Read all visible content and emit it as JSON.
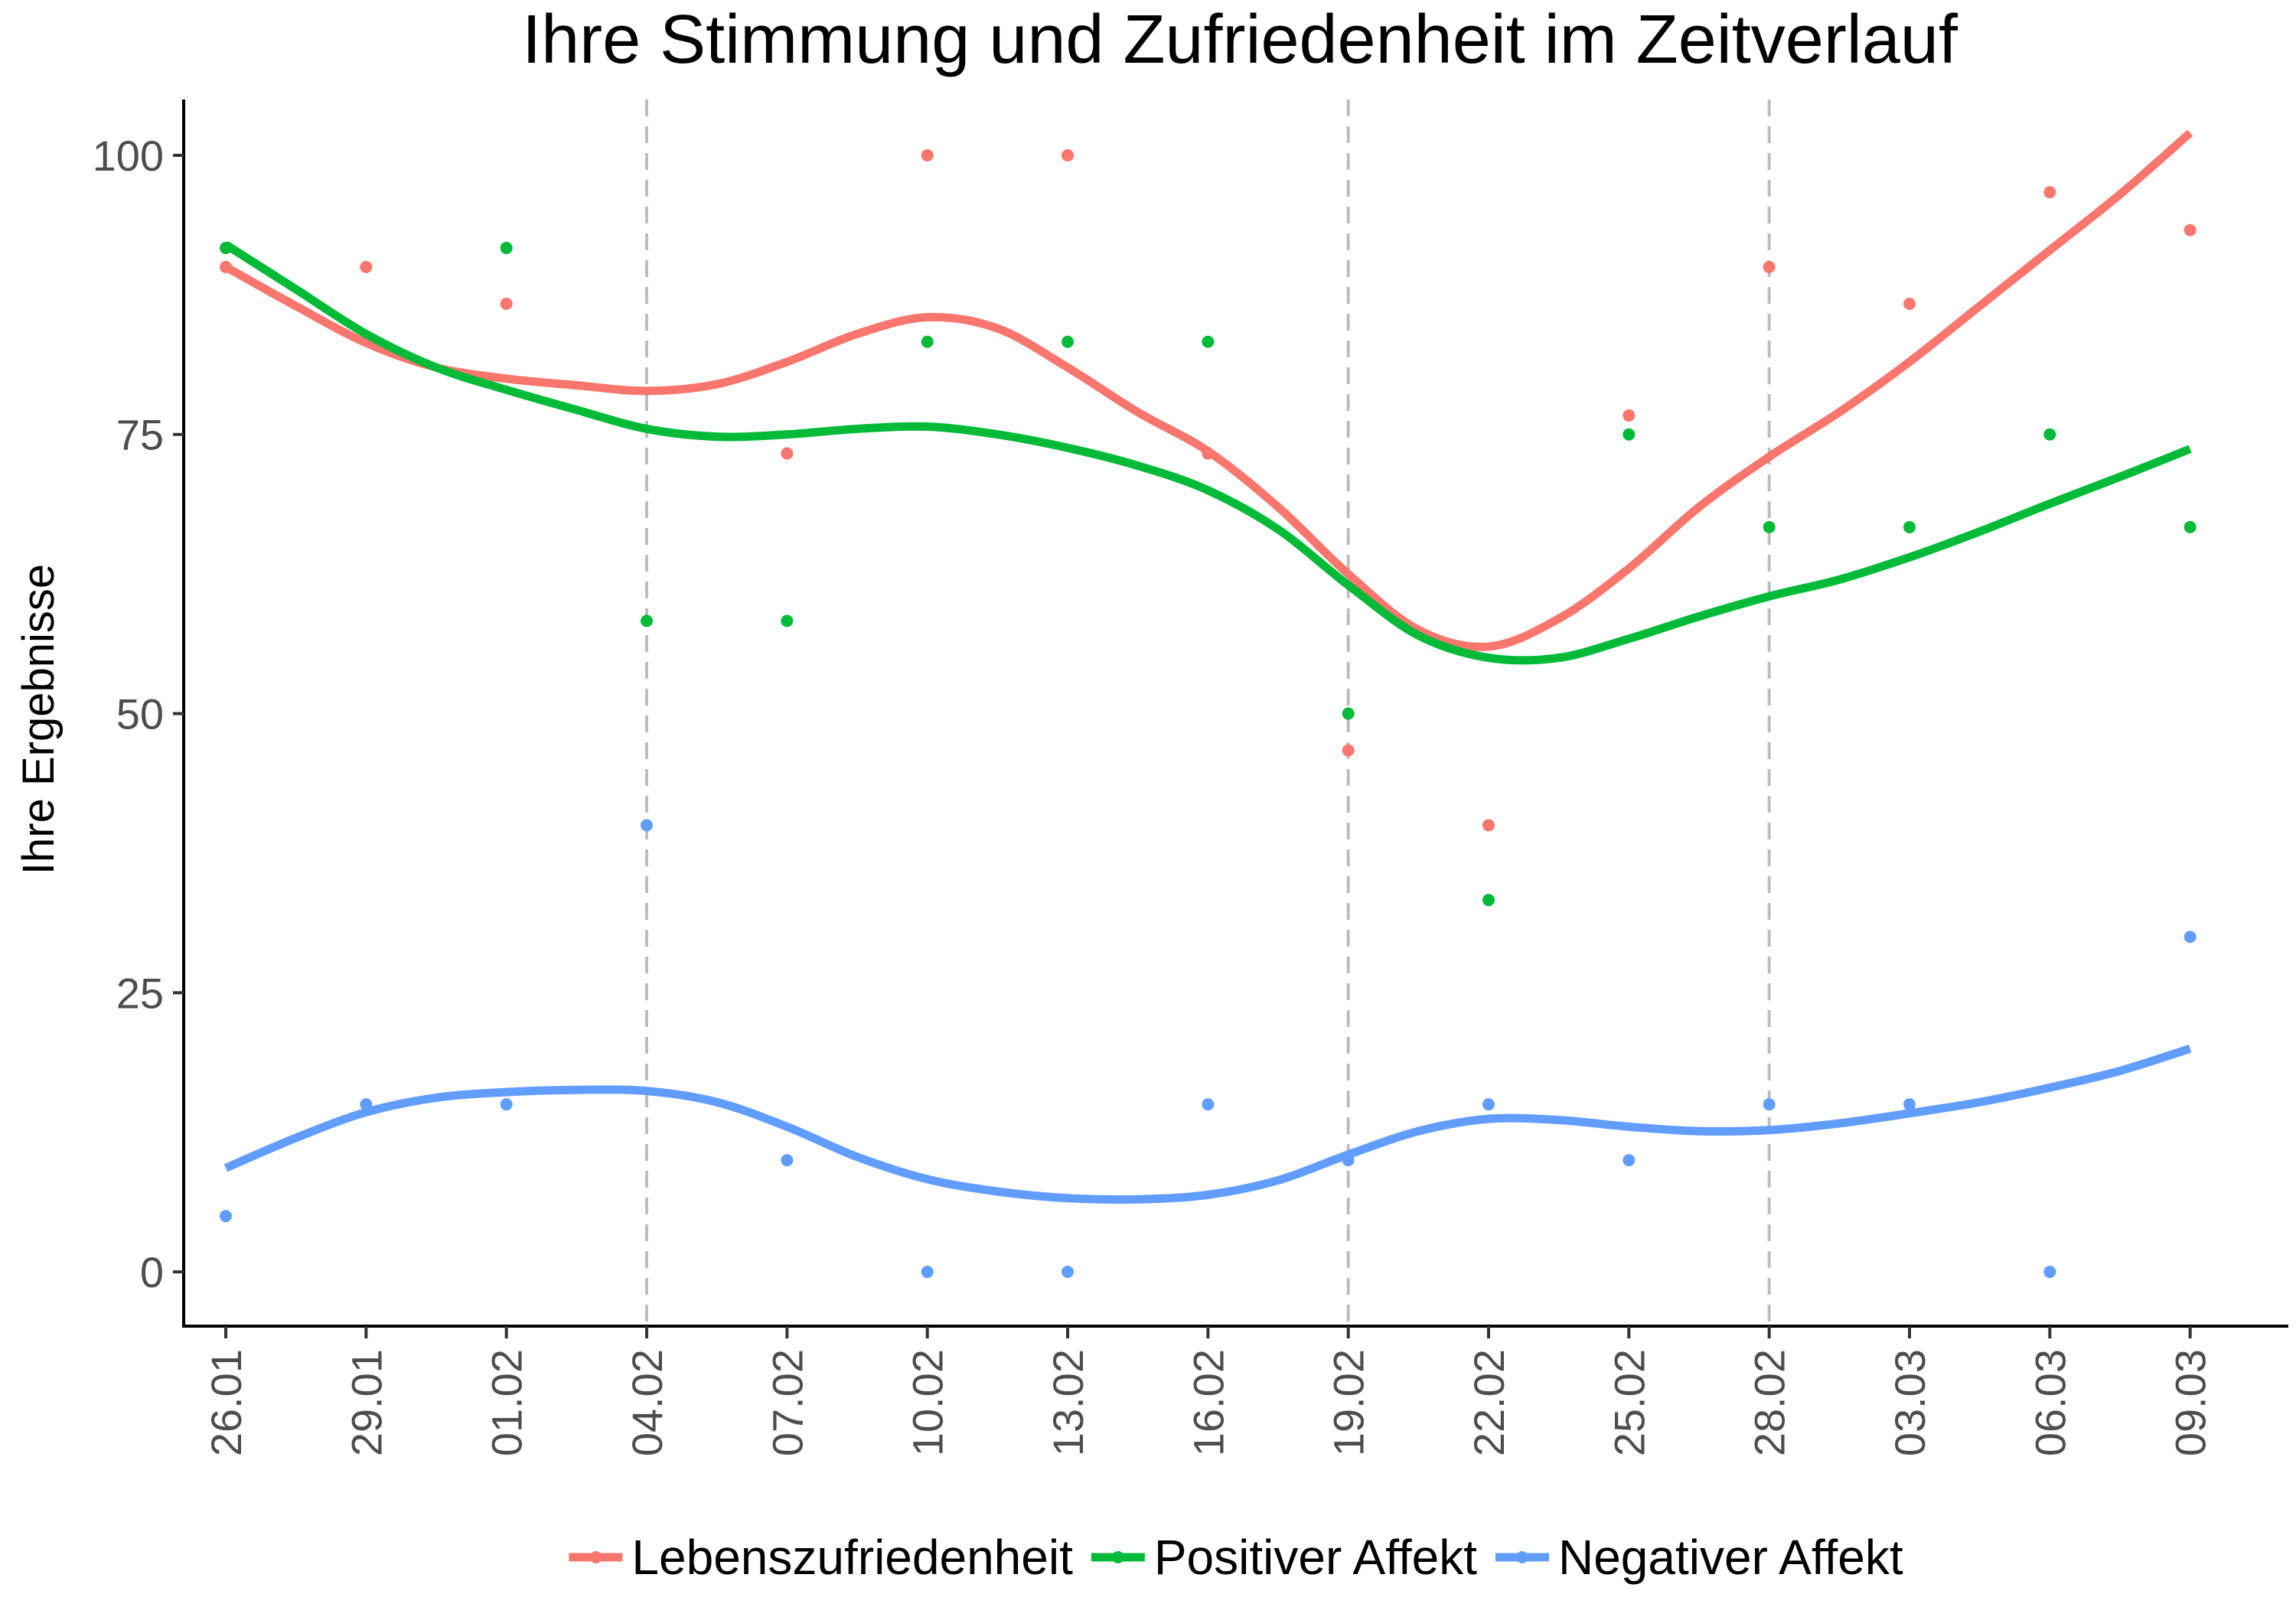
{
  "chart_data": {
    "type": "line",
    "title": "Ihre Stimmung und Zufriedenheit im Zeitverlauf",
    "xlabel": "",
    "ylabel": "Ihre Ergebnisse",
    "ylim": [
      -5,
      105
    ],
    "y_ticks": [
      0,
      25,
      50,
      75,
      100
    ],
    "x_ticks": [
      "26.01",
      "29.01",
      "01.02",
      "04.02",
      "07.02",
      "10.02",
      "13.02",
      "16.02",
      "19.02",
      "22.02",
      "25.02",
      "28.02",
      "03.03",
      "06.03",
      "09.03"
    ],
    "x_range_ticks": [
      -0.3,
      14.7
    ],
    "vlines": [
      3,
      8,
      11
    ],
    "grid": false,
    "legend_position": "bottom",
    "series": [
      {
        "name": "Lebenszufriedenheit",
        "color": "#F8766D",
        "points": [
          [
            0,
            90
          ],
          [
            1,
            90
          ],
          [
            2,
            86.7
          ],
          [
            4,
            73.3
          ],
          [
            5,
            100
          ],
          [
            6,
            100
          ],
          [
            7,
            73.3
          ],
          [
            8,
            46.7
          ],
          [
            9,
            40
          ],
          [
            10,
            76.7
          ],
          [
            11,
            90
          ],
          [
            12,
            86.7
          ],
          [
            13,
            96.7
          ],
          [
            14,
            93.3
          ]
        ],
        "smooth": [
          [
            0,
            90
          ],
          [
            0.5,
            86.5
          ],
          [
            1,
            83.2
          ],
          [
            1.5,
            81
          ],
          [
            2,
            80
          ],
          [
            2.5,
            79.4
          ],
          [
            3,
            78.9
          ],
          [
            3.5,
            79.5
          ],
          [
            4,
            81.5
          ],
          [
            4.5,
            84
          ],
          [
            5,
            85.5
          ],
          [
            5.5,
            84.5
          ],
          [
            6,
            81
          ],
          [
            6.5,
            77
          ],
          [
            7,
            73.5
          ],
          [
            7.5,
            68.5
          ],
          [
            8,
            62.5
          ],
          [
            8.5,
            57.5
          ],
          [
            9,
            56
          ],
          [
            9.5,
            58.5
          ],
          [
            10,
            63
          ],
          [
            10.5,
            68.5
          ],
          [
            11,
            73
          ],
          [
            11.5,
            77
          ],
          [
            12,
            81.5
          ],
          [
            12.5,
            86.5
          ],
          [
            13,
            91.5
          ],
          [
            13.5,
            96.5
          ],
          [
            14,
            102
          ]
        ]
      },
      {
        "name": "Positiver Affekt",
        "color": "#00BA38",
        "points": [
          [
            0,
            91.7
          ],
          [
            2,
            91.7
          ],
          [
            3,
            58.3
          ],
          [
            4,
            58.3
          ],
          [
            5,
            83.3
          ],
          [
            6,
            83.3
          ],
          [
            7,
            83.3
          ],
          [
            8,
            50
          ],
          [
            9,
            33.3
          ],
          [
            10,
            75
          ],
          [
            11,
            66.7
          ],
          [
            12,
            66.7
          ],
          [
            13,
            75
          ],
          [
            14,
            66.7
          ]
        ],
        "smooth": [
          [
            0,
            92
          ],
          [
            0.5,
            88
          ],
          [
            1,
            84
          ],
          [
            1.5,
            81
          ],
          [
            2,
            79
          ],
          [
            2.5,
            77.2
          ],
          [
            3,
            75.5
          ],
          [
            3.5,
            74.8
          ],
          [
            4,
            75
          ],
          [
            4.5,
            75.5
          ],
          [
            5,
            75.7
          ],
          [
            5.5,
            75
          ],
          [
            6,
            73.8
          ],
          [
            6.5,
            72.2
          ],
          [
            7,
            70
          ],
          [
            7.5,
            66.5
          ],
          [
            8,
            61.5
          ],
          [
            8.5,
            57
          ],
          [
            9,
            55
          ],
          [
            9.5,
            55
          ],
          [
            10,
            56.7
          ],
          [
            10.5,
            58.7
          ],
          [
            11,
            60.5
          ],
          [
            11.5,
            62
          ],
          [
            12,
            64
          ],
          [
            12.5,
            66.3
          ],
          [
            13,
            68.8
          ],
          [
            13.5,
            71.2
          ],
          [
            14,
            73.7
          ]
        ]
      },
      {
        "name": "Negativer Affekt",
        "color": "#619CFF",
        "points": [
          [
            0,
            5
          ],
          [
            1,
            15
          ],
          [
            2,
            15
          ],
          [
            3,
            40
          ],
          [
            4,
            10
          ],
          [
            5,
            0
          ],
          [
            6,
            0
          ],
          [
            7,
            15
          ],
          [
            8,
            10
          ],
          [
            9,
            15
          ],
          [
            10,
            10
          ],
          [
            11,
            15
          ],
          [
            12,
            15
          ],
          [
            13,
            0
          ],
          [
            14,
            30
          ]
        ],
        "smooth": [
          [
            0,
            9.3
          ],
          [
            0.5,
            12
          ],
          [
            1,
            14.3
          ],
          [
            1.5,
            15.6
          ],
          [
            2,
            16.1
          ],
          [
            2.5,
            16.3
          ],
          [
            3,
            16.2
          ],
          [
            3.5,
            15.2
          ],
          [
            4,
            13
          ],
          [
            4.5,
            10.3
          ],
          [
            5,
            8.3
          ],
          [
            5.5,
            7.2
          ],
          [
            6,
            6.6
          ],
          [
            6.5,
            6.5
          ],
          [
            7,
            6.9
          ],
          [
            7.5,
            8.2
          ],
          [
            8,
            10.5
          ],
          [
            8.5,
            12.6
          ],
          [
            9,
            13.7
          ],
          [
            9.5,
            13.6
          ],
          [
            10,
            13
          ],
          [
            10.5,
            12.6
          ],
          [
            11,
            12.7
          ],
          [
            11.5,
            13.3
          ],
          [
            12,
            14.2
          ],
          [
            12.5,
            15.2
          ],
          [
            13,
            16.5
          ],
          [
            13.5,
            18
          ],
          [
            14,
            20
          ]
        ]
      }
    ]
  }
}
